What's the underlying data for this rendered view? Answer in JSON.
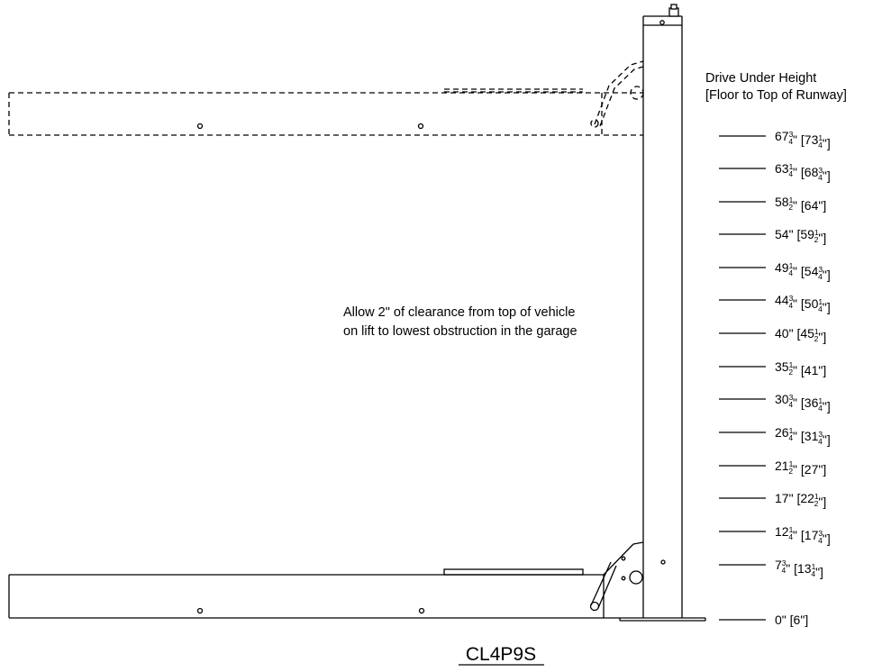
{
  "heading": {
    "line1": "Drive Under Height",
    "line2": "[Floor to Top of Runway]"
  },
  "note": {
    "line1": "Allow 2\" of clearance from top of vehicle",
    "line2": "on lift to lowest obstruction in the garage"
  },
  "model": "CL4P9S",
  "heights": [
    {
      "w": "67",
      "wf": [
        "3",
        "4"
      ],
      "b": "73",
      "bf": [
        "1",
        "4"
      ]
    },
    {
      "w": "63",
      "wf": [
        "1",
        "4"
      ],
      "b": "68",
      "bf": [
        "3",
        "4"
      ]
    },
    {
      "w": "58",
      "wf": [
        "1",
        "2"
      ],
      "b": "64",
      "bf": null
    },
    {
      "w": "54",
      "wf": null,
      "b": "59",
      "bf": [
        "1",
        "2"
      ]
    },
    {
      "w": "49",
      "wf": [
        "1",
        "4"
      ],
      "b": "54",
      "bf": [
        "3",
        "4"
      ]
    },
    {
      "w": "44",
      "wf": [
        "3",
        "4"
      ],
      "b": "50",
      "bf": [
        "1",
        "4"
      ]
    },
    {
      "w": "40",
      "wf": null,
      "b": "45",
      "bf": [
        "1",
        "2"
      ]
    },
    {
      "w": "35",
      "wf": [
        "1",
        "2"
      ],
      "b": "41",
      "bf": null
    },
    {
      "w": "30",
      "wf": [
        "3",
        "4"
      ],
      "b": "36",
      "bf": [
        "1",
        "4"
      ]
    },
    {
      "w": "26",
      "wf": [
        "1",
        "4"
      ],
      "b": "31",
      "bf": [
        "3",
        "4"
      ]
    },
    {
      "w": "21",
      "wf": [
        "1",
        "2"
      ],
      "b": "27",
      "bf": null
    },
    {
      "w": "17",
      "wf": null,
      "b": "22",
      "bf": [
        "1",
        "2"
      ]
    },
    {
      "w": "12",
      "wf": [
        "1",
        "4"
      ],
      "b": "17",
      "bf": [
        "3",
        "4"
      ]
    },
    {
      "w": "7",
      "wf": [
        "3",
        "4"
      ],
      "b": "13",
      "bf": [
        "1",
        "4"
      ]
    },
    {
      "w": "0",
      "wf": null,
      "b": "6",
      "bf": null
    }
  ]
}
